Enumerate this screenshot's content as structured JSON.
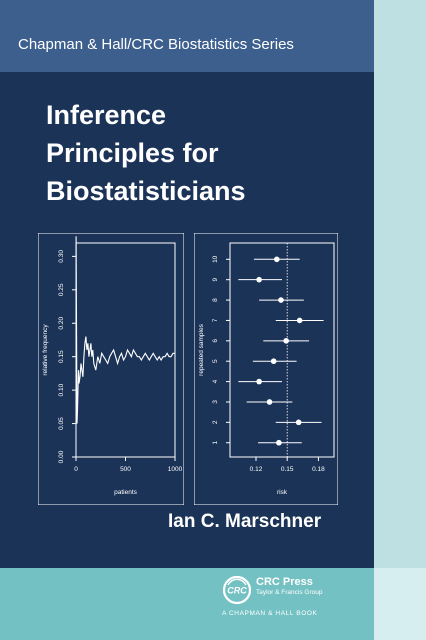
{
  "cover": {
    "series": "Chapman & Hall/CRC Biostatistics Series",
    "title_lines": [
      "Inference",
      "Principles for",
      "Biostatisticians"
    ],
    "author": "Ian C. Marschner",
    "publisher_name": "CRC Press",
    "publisher_group": "Taylor & Francis Group",
    "publisher_book": "A CHAPMAN & HALL BOOK",
    "logo_text": "CRC",
    "colors": {
      "cover": "#1c3358",
      "series_band": "#3d5f8e",
      "bottom_band": "#74c1c4",
      "spine": "#bfe0e2"
    }
  },
  "chart_data": [
    {
      "type": "line",
      "xlabel": "patients",
      "ylabel": "relative frequency",
      "xlim": [
        0,
        1000
      ],
      "ylim": [
        0,
        0.32
      ],
      "xticks": [
        "0",
        "500",
        "1000"
      ],
      "yticks": [
        "0.00",
        "0.05",
        "0.10",
        "0.15",
        "0.20",
        "0.25",
        "0.30"
      ],
      "grid": false,
      "series": [
        {
          "x": [
            1,
            5,
            10,
            15,
            20,
            25,
            30,
            40,
            50,
            60,
            70,
            80,
            90,
            100,
            110,
            120,
            130,
            140,
            150,
            160,
            170,
            180,
            200,
            220,
            240,
            260,
            280,
            300,
            320,
            340,
            360,
            380,
            400,
            420,
            440,
            460,
            480,
            500,
            520,
            540,
            560,
            580,
            600,
            620,
            640,
            660,
            680,
            700,
            720,
            740,
            760,
            780,
            800,
            820,
            840,
            860,
            880,
            900,
            920,
            940,
            960,
            980,
            1000
          ],
          "y": [
            0.33,
            0.2,
            0.05,
            0.07,
            0.1,
            0.13,
            0.11,
            0.12,
            0.14,
            0.13,
            0.12,
            0.15,
            0.17,
            0.18,
            0.16,
            0.17,
            0.15,
            0.16,
            0.17,
            0.15,
            0.16,
            0.14,
            0.13,
            0.15,
            0.14,
            0.155,
            0.15,
            0.145,
            0.14,
            0.15,
            0.155,
            0.16,
            0.15,
            0.14,
            0.15,
            0.155,
            0.145,
            0.15,
            0.16,
            0.155,
            0.15,
            0.16,
            0.155,
            0.15,
            0.15,
            0.145,
            0.15,
            0.155,
            0.15,
            0.145,
            0.15,
            0.155,
            0.15,
            0.145,
            0.15,
            0.145,
            0.15,
            0.15,
            0.155,
            0.15,
            0.15,
            0.155,
            0.155
          ]
        }
      ]
    },
    {
      "type": "scatter",
      "xlabel": "risk",
      "ylabel": "repeated samples",
      "xlim": [
        0.095,
        0.195
      ],
      "ylim": [
        0.3,
        10.8
      ],
      "xticks": [
        "0.12",
        "0.15",
        "0.18"
      ],
      "yticks": [
        "1",
        "2",
        "3",
        "4",
        "5",
        "6",
        "7",
        "8",
        "9",
        "10"
      ],
      "reference_line": 0.15,
      "grid": false,
      "series": [
        {
          "y": [
            1,
            2,
            3,
            4,
            5,
            6,
            7,
            8,
            9,
            10
          ],
          "x": [
            0.142,
            0.161,
            0.133,
            0.123,
            0.137,
            0.149,
            0.162,
            0.144,
            0.123,
            0.14
          ],
          "lower": [
            0.122,
            0.139,
            0.111,
            0.103,
            0.117,
            0.127,
            0.139,
            0.123,
            0.103,
            0.118
          ],
          "upper": [
            0.164,
            0.183,
            0.155,
            0.145,
            0.159,
            0.171,
            0.185,
            0.166,
            0.145,
            0.162
          ]
        }
      ]
    }
  ]
}
